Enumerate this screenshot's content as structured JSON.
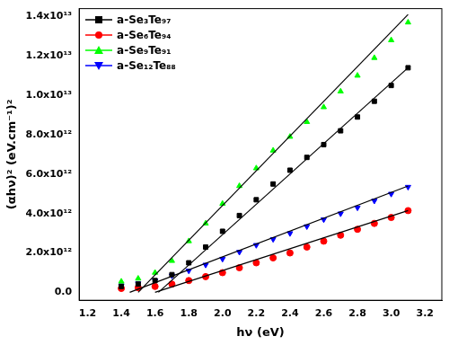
{
  "chart_data": {
    "type": "scatter",
    "x_label": "hν (eV)",
    "y_label": "(αhν)² (eV.cm⁻¹)²",
    "xlim": [
      1.15,
      3.3
    ],
    "ylim": [
      -400000000000,
      14400000000000
    ],
    "xticks": [
      1.2,
      1.4,
      1.6,
      1.8,
      {
        "value": 2,
        "label": "2.0"
      },
      2.2,
      2.4,
      2.6,
      2.8,
      {
        "value": 3,
        "label": "3.0"
      },
      3.2
    ],
    "yticks": [
      {
        "value": 0,
        "label": "0.0"
      },
      {
        "value": 2000000000000,
        "label": "2.0x10¹²"
      },
      {
        "value": 4000000000000,
        "label": "4.0x10¹²"
      },
      {
        "value": 6000000000000,
        "label": "6.0x10¹²"
      },
      {
        "value": 8000000000000,
        "label": "8.0x10¹²"
      },
      {
        "value": 10000000000000,
        "label": "1.0x10¹³"
      },
      {
        "value": 12000000000000,
        "label": "1.2x10¹³"
      },
      {
        "value": 14000000000000,
        "label": "1.4x10¹³"
      }
    ],
    "grid": false,
    "legend": "upper left",
    "series": [
      {
        "name": "a-Se₃Te₉₇",
        "color": "#000000",
        "marker": "square",
        "line_style": "none",
        "x": [
          1.4,
          1.5,
          1.6,
          1.7,
          1.8,
          1.9,
          2.0,
          2.1,
          2.2,
          2.3,
          2.4,
          2.5,
          2.6,
          2.7,
          2.8,
          2.9,
          3.0,
          3.1
        ],
        "values": [
          300000000000,
          420000000000,
          600000000000,
          900000000000,
          1500000000000,
          2300000000000,
          3100000000000,
          3900000000000,
          4700000000000,
          5500000000000,
          6200000000000,
          6850000000000,
          7500000000000,
          8200000000000,
          8900000000000,
          9700000000000,
          10500000000000,
          11400000000000
        ]
      },
      {
        "name": "a-Se₆Te₉₄",
        "color": "#ff0000",
        "marker": "circle",
        "line_style": "none",
        "x": [
          1.4,
          1.5,
          1.6,
          1.7,
          1.8,
          1.9,
          2.0,
          2.1,
          2.2,
          2.3,
          2.4,
          2.5,
          2.6,
          2.7,
          2.8,
          2.9,
          3.0,
          3.1
        ],
        "values": [
          200000000000,
          240000000000,
          300000000000,
          420000000000,
          600000000000,
          800000000000,
          1000000000000,
          1250000000000,
          1500000000000,
          1750000000000,
          2000000000000,
          2300000000000,
          2600000000000,
          2900000000000,
          3200000000000,
          3500000000000,
          3800000000000,
          4150000000000
        ]
      },
      {
        "name": "a-Se₉Te₉₁",
        "color": "#00ff00",
        "marker": "triangle",
        "line_style": "none",
        "x": [
          1.4,
          1.5,
          1.6,
          1.7,
          1.8,
          1.9,
          2.0,
          2.1,
          2.2,
          2.3,
          2.4,
          2.5,
          2.6,
          2.7,
          2.8,
          2.9,
          3.0,
          3.1
        ],
        "values": [
          550000000000,
          700000000000,
          1000000000000,
          1600000000000,
          2600000000000,
          3500000000000,
          4500000000000,
          5400000000000,
          6300000000000,
          7200000000000,
          7900000000000,
          8650000000000,
          9400000000000,
          10200000000000,
          11000000000000,
          11900000000000,
          12800000000000,
          13700000000000
        ]
      },
      {
        "name": "a-Se₁₂Te₈₈",
        "color": "#0000ff",
        "marker": "triangle_down",
        "line_style": "none",
        "x": [
          1.4,
          1.5,
          1.6,
          1.7,
          1.8,
          1.9,
          2.0,
          2.1,
          2.2,
          2.3,
          2.4,
          2.5,
          2.6,
          2.7,
          2.8,
          2.9,
          3.0,
          3.1
        ],
        "values": [
          350000000000,
          450000000000,
          600000000000,
          850000000000,
          1100000000000,
          1400000000000,
          1700000000000,
          2050000000000,
          2400000000000,
          2700000000000,
          3000000000000,
          3350000000000,
          3700000000000,
          4000000000000,
          4300000000000,
          4650000000000,
          5000000000000,
          5350000000000
        ]
      },
      {
        "type": "line",
        "color": "#000000",
        "marker": "none",
        "line_style": "solid",
        "x": [
          1.5,
          3.1
        ],
        "values": [
          0,
          14100000000000
        ]
      },
      {
        "type": "line",
        "color": "#000000",
        "marker": "none",
        "line_style": "solid",
        "x": [
          1.62,
          3.1
        ],
        "values": [
          0,
          11400000000000
        ]
      },
      {
        "type": "line",
        "color": "#000000",
        "marker": "none",
        "line_style": "solid",
        "x": [
          1.45,
          3.1
        ],
        "values": [
          0,
          5400000000000
        ]
      },
      {
        "type": "line",
        "color": "#000000",
        "marker": "none",
        "line_style": "solid",
        "x": [
          1.6,
          3.1
        ],
        "values": [
          0,
          4150000000000
        ]
      }
    ]
  }
}
